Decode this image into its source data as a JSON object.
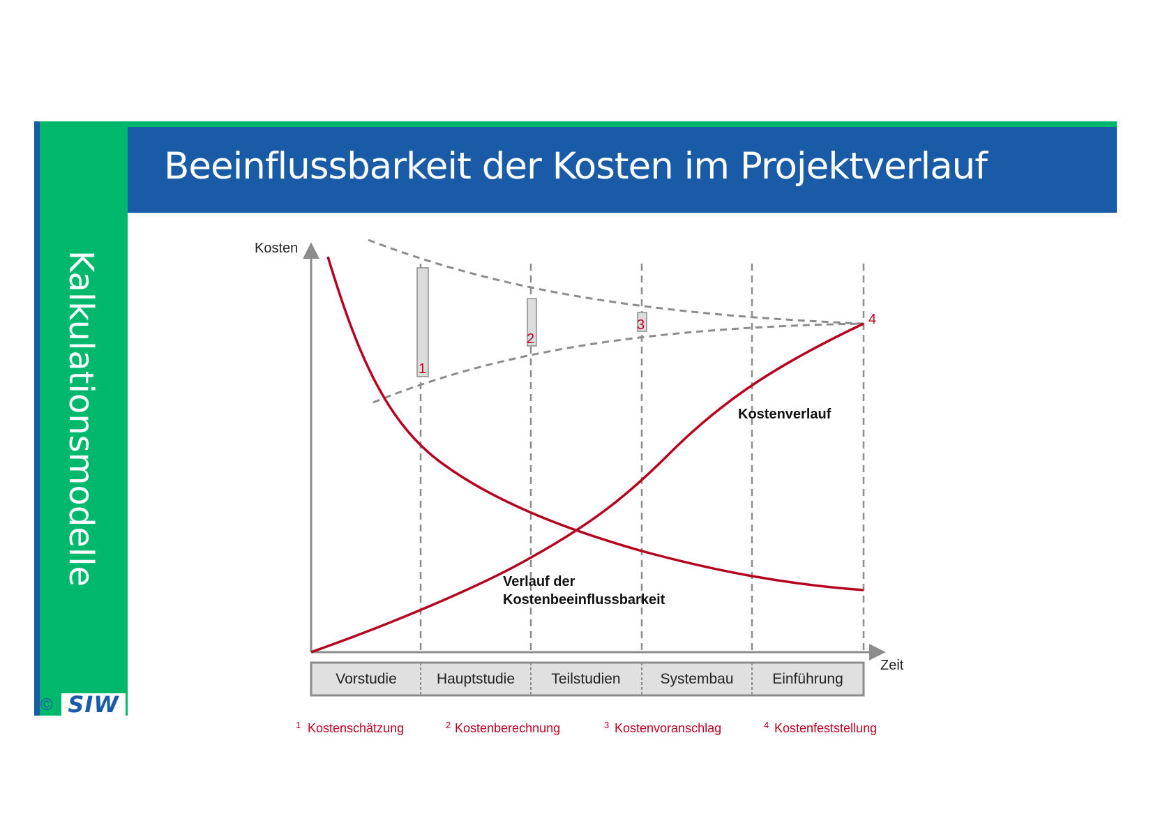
{
  "sidebar": {
    "title": "Kalkulationsmodelle"
  },
  "header": {
    "title": "Beeinflussbarkeit der Kosten im Projektverlauf"
  },
  "logo": {
    "copyright": "©",
    "text": "SIW"
  },
  "diagram": {
    "y_axis_label": "Kosten",
    "x_axis_label": "Zeit",
    "phases": [
      "Vorstudie",
      "Hauptstudie",
      "Teilstudien",
      "Systembau",
      "Einführung"
    ],
    "markers": [
      "1",
      "2",
      "3",
      "4"
    ],
    "curve_labels": {
      "cost_curve": "Kostenverlauf",
      "influence_line1": "Verlauf der",
      "influence_line2": "Kostenbeeinflussbarkeit"
    },
    "legend": [
      {
        "num": "1",
        "text": "Kostenschätzung"
      },
      {
        "num": "2",
        "text": "Kostenberechnung"
      },
      {
        "num": "3",
        "text": "Kostenvoranschlag"
      },
      {
        "num": "4",
        "text": "Kostenfeststellung"
      }
    ],
    "colors": {
      "curve": "#b5001e",
      "dashed": "#8c8c8c",
      "marker": "#c00020",
      "axis": "#8c8c8c"
    }
  }
}
